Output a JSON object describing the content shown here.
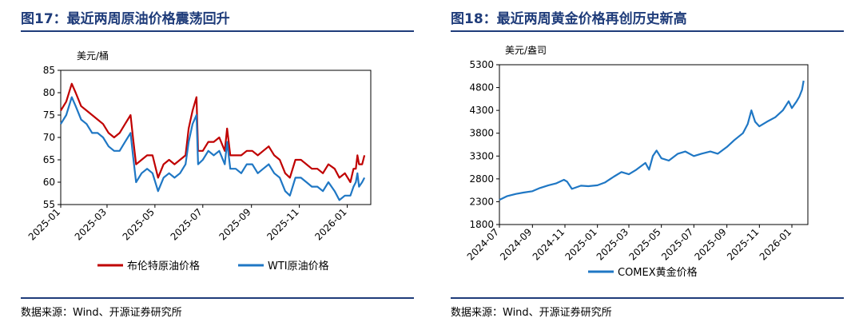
{
  "left": {
    "title": "图17：最近两周原油价格震荡回升",
    "source": "数据来源：Wind、开源证券研究所",
    "chart_data": {
      "type": "line",
      "ylabel": "美元/桶",
      "ylim": [
        55,
        85
      ],
      "y_ticks": [
        "55",
        "60",
        "65",
        "70",
        "75",
        "80",
        "85"
      ],
      "x_range": [
        "2025-01-01",
        "2026-01-31"
      ],
      "x_ticks": [
        "2025-01",
        "2025-03",
        "2025-05",
        "2025-07",
        "2025-09",
        "2025-11",
        "2026-01"
      ],
      "legend_position": "bottom",
      "series": [
        {
          "name": "布伦特原油价格",
          "color": "#c00000",
          "x": [
            "2025-01-01",
            "2025-01-08",
            "2025-01-15",
            "2025-01-20",
            "2025-01-27",
            "2025-02-03",
            "2025-02-10",
            "2025-02-17",
            "2025-02-24",
            "2025-03-03",
            "2025-03-10",
            "2025-03-17",
            "2025-03-24",
            "2025-03-31",
            "2025-04-03",
            "2025-04-07",
            "2025-04-14",
            "2025-04-21",
            "2025-04-28",
            "2025-05-05",
            "2025-05-12",
            "2025-05-19",
            "2025-05-26",
            "2025-06-02",
            "2025-06-09",
            "2025-06-13",
            "2025-06-18",
            "2025-06-23",
            "2025-06-25",
            "2025-07-01",
            "2025-07-08",
            "2025-07-15",
            "2025-07-22",
            "2025-07-29",
            "2025-08-01",
            "2025-08-05",
            "2025-08-12",
            "2025-08-19",
            "2025-08-26",
            "2025-09-02",
            "2025-09-09",
            "2025-09-16",
            "2025-09-23",
            "2025-09-30",
            "2025-10-07",
            "2025-10-14",
            "2025-10-20",
            "2025-10-27",
            "2025-11-03",
            "2025-11-10",
            "2025-11-17",
            "2025-11-24",
            "2025-12-01",
            "2025-12-08",
            "2025-12-16",
            "2025-12-22",
            "2025-12-29",
            "2026-01-05",
            "2026-01-09",
            "2026-01-12",
            "2026-01-14",
            "2026-01-16",
            "2026-01-20",
            "2026-01-23"
          ],
          "values": [
            76,
            78,
            82,
            80,
            77,
            76,
            75,
            74,
            73,
            71,
            70,
            71,
            73,
            75,
            70,
            64,
            65,
            66,
            66,
            61,
            64,
            65,
            64,
            65,
            66,
            72,
            76,
            79,
            67,
            67,
            69,
            69,
            70,
            67,
            72,
            66,
            66,
            66,
            67,
            67,
            66,
            67,
            68,
            66,
            65,
            62,
            61,
            65,
            65,
            64,
            63,
            63,
            62,
            64,
            63,
            61,
            62,
            60,
            63,
            63,
            66,
            64,
            64,
            66
          ]
        },
        {
          "name": "WTI原油价格",
          "color": "#1f77c4",
          "x": [
            "2025-01-01",
            "2025-01-08",
            "2025-01-15",
            "2025-01-20",
            "2025-01-27",
            "2025-02-03",
            "2025-02-10",
            "2025-02-17",
            "2025-02-24",
            "2025-03-03",
            "2025-03-10",
            "2025-03-17",
            "2025-03-24",
            "2025-03-31",
            "2025-04-03",
            "2025-04-07",
            "2025-04-14",
            "2025-04-21",
            "2025-04-28",
            "2025-05-05",
            "2025-05-12",
            "2025-05-19",
            "2025-05-26",
            "2025-06-02",
            "2025-06-09",
            "2025-06-13",
            "2025-06-18",
            "2025-06-23",
            "2025-06-25",
            "2025-07-01",
            "2025-07-08",
            "2025-07-15",
            "2025-07-22",
            "2025-07-29",
            "2025-08-01",
            "2025-08-05",
            "2025-08-12",
            "2025-08-19",
            "2025-08-26",
            "2025-09-02",
            "2025-09-09",
            "2025-09-16",
            "2025-09-23",
            "2025-09-30",
            "2025-10-07",
            "2025-10-14",
            "2025-10-20",
            "2025-10-27",
            "2025-11-03",
            "2025-11-10",
            "2025-11-17",
            "2025-11-24",
            "2025-12-01",
            "2025-12-08",
            "2025-12-16",
            "2025-12-22",
            "2025-12-29",
            "2026-01-05",
            "2026-01-09",
            "2026-01-12",
            "2026-01-14",
            "2026-01-16",
            "2026-01-20",
            "2026-01-23"
          ],
          "values": [
            73,
            75,
            79,
            77,
            74,
            73,
            71,
            71,
            70,
            68,
            67,
            67,
            69,
            71,
            66,
            60,
            62,
            63,
            62,
            58,
            61,
            62,
            61,
            62,
            64,
            69,
            73,
            75,
            64,
            65,
            67,
            66,
            67,
            64,
            69,
            63,
            63,
            62,
            64,
            64,
            62,
            63,
            64,
            62,
            61,
            58,
            57,
            61,
            61,
            60,
            59,
            59,
            58,
            60,
            58,
            56,
            57,
            57,
            59,
            60,
            62,
            59,
            60,
            61
          ]
        }
      ]
    }
  },
  "right": {
    "title": "图18：最近两周黄金价格再创历史新高",
    "source": "数据来源：Wind、开源证券研究所",
    "chart_data": {
      "type": "line",
      "ylabel": "美元/盎司",
      "ylim": [
        1800,
        5300
      ],
      "y_ticks": [
        "1800",
        "2300",
        "2800",
        "3300",
        "3800",
        "4300",
        "4800",
        "5300"
      ],
      "x_range": [
        "2024-07-01",
        "2026-01-31"
      ],
      "x_ticks": [
        "2024-07",
        "2024-09",
        "2024-11",
        "2025-01",
        "2025-03",
        "2025-05",
        "2025-07",
        "2025-09",
        "2025-11",
        "2026-01"
      ],
      "legend_position": "bottom",
      "series": [
        {
          "name": "COMEX黄金价格",
          "color": "#1f77c4",
          "x": [
            "2024-07-01",
            "2024-07-15",
            "2024-08-01",
            "2024-08-15",
            "2024-09-01",
            "2024-09-15",
            "2024-10-01",
            "2024-10-15",
            "2024-10-30",
            "2024-11-05",
            "2024-11-14",
            "2024-12-01",
            "2024-12-15",
            "2025-01-01",
            "2025-01-15",
            "2025-02-01",
            "2025-02-15",
            "2025-03-01",
            "2025-03-15",
            "2025-04-01",
            "2025-04-08",
            "2025-04-15",
            "2025-04-22",
            "2025-05-01",
            "2025-05-15",
            "2025-06-01",
            "2025-06-15",
            "2025-07-01",
            "2025-07-15",
            "2025-08-01",
            "2025-08-15",
            "2025-09-01",
            "2025-09-15",
            "2025-10-01",
            "2025-10-10",
            "2025-10-17",
            "2025-10-24",
            "2025-11-01",
            "2025-11-15",
            "2025-12-01",
            "2025-12-15",
            "2025-12-26",
            "2026-01-01",
            "2026-01-10",
            "2026-01-15",
            "2026-01-20",
            "2026-01-23"
          ],
          "values": [
            2340,
            2420,
            2470,
            2500,
            2530,
            2600,
            2660,
            2700,
            2780,
            2740,
            2580,
            2650,
            2640,
            2660,
            2720,
            2850,
            2950,
            2900,
            3000,
            3150,
            3000,
            3300,
            3420,
            3250,
            3200,
            3350,
            3400,
            3300,
            3350,
            3400,
            3350,
            3500,
            3650,
            3800,
            4000,
            4300,
            4050,
            3950,
            4050,
            4150,
            4300,
            4500,
            4350,
            4500,
            4600,
            4750,
            4950
          ]
        }
      ]
    }
  }
}
